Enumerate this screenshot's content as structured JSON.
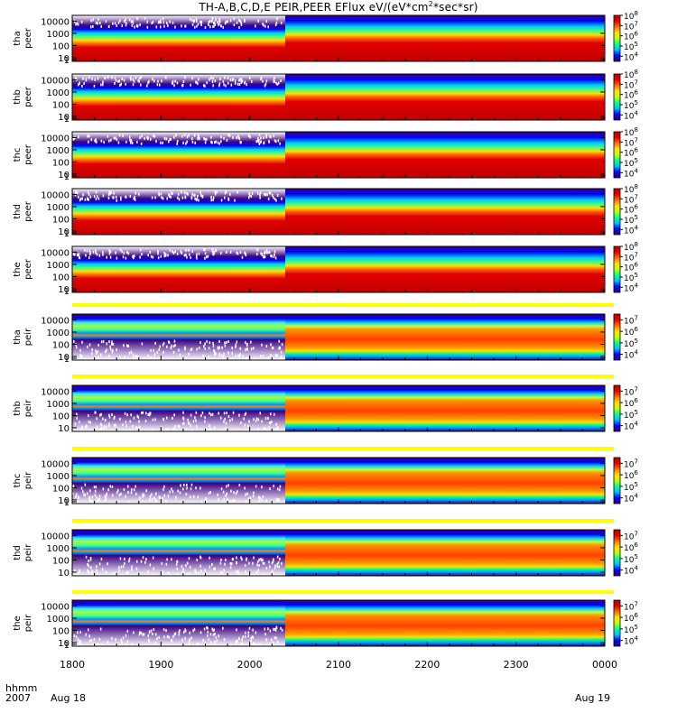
{
  "title_main": "TH-A,B,C,D,E  PEIR,PEER  EFlux  eV/(eV*cm",
  "title_sup": "2",
  "title_tail": "*sec*sr)",
  "chart_data": {
    "type": "heatmap",
    "x_axis": {
      "units_label": "hhmm",
      "year_label": "2007",
      "tick_labels": [
        "1800",
        "1900",
        "2000",
        "2100",
        "2200",
        "2300",
        "0000"
      ],
      "date_labels": [
        "Aug 18",
        "Aug 19"
      ],
      "range_hours": [
        18.0,
        24.0
      ]
    },
    "panels": [
      {
        "probe": "tha",
        "instrument": "peer",
        "ylim_eV": [
          5,
          30000
        ],
        "yticks": [
          "10000",
          "1000",
          "100",
          "10",
          "1"
        ],
        "cbar_range_exp": [
          3.5,
          8
        ],
        "cbar_ticks_exp": [
          4,
          5,
          6,
          7,
          8
        ],
        "transition_hhmm": "2024",
        "separator": false
      },
      {
        "probe": "thb",
        "instrument": "peer",
        "ylim_eV": [
          5,
          30000
        ],
        "yticks": [
          "10000",
          "1000",
          "100",
          "10",
          "1"
        ],
        "cbar_range_exp": [
          3.5,
          8
        ],
        "cbar_ticks_exp": [
          4,
          5,
          6,
          7,
          8
        ],
        "transition_hhmm": "2024",
        "separator": false
      },
      {
        "probe": "thc",
        "instrument": "peer",
        "ylim_eV": [
          5,
          30000
        ],
        "yticks": [
          "10000",
          "1000",
          "100",
          "10",
          "1"
        ],
        "cbar_range_exp": [
          3.5,
          8
        ],
        "cbar_ticks_exp": [
          4,
          5,
          6,
          7,
          8
        ],
        "transition_hhmm": "2024",
        "separator": false
      },
      {
        "probe": "thd",
        "instrument": "peer",
        "ylim_eV": [
          5,
          30000
        ],
        "yticks": [
          "10000",
          "1000",
          "100",
          "10",
          "1"
        ],
        "cbar_range_exp": [
          3.5,
          8
        ],
        "cbar_ticks_exp": [
          4,
          5,
          6,
          7,
          8
        ],
        "transition_hhmm": "2024",
        "separator": false
      },
      {
        "probe": "the",
        "instrument": "peer",
        "ylim_eV": [
          5,
          30000
        ],
        "yticks": [
          "10000",
          "1000",
          "100",
          "10",
          "1"
        ],
        "cbar_range_exp": [
          3.5,
          8
        ],
        "cbar_ticks_exp": [
          4,
          5,
          6,
          7,
          8
        ],
        "transition_hhmm": "2024",
        "separator": false
      },
      {
        "probe": "tha",
        "instrument": "peir",
        "ylim_eV": [
          5,
          30000
        ],
        "yticks": [
          "10000",
          "1000",
          "100",
          "10",
          "1"
        ],
        "cbar_range_exp": [
          3.5,
          7.5
        ],
        "cbar_ticks_exp": [
          4,
          5,
          6,
          7
        ],
        "transition_hhmm": "2024",
        "separator": true
      },
      {
        "probe": "thb",
        "instrument": "peir",
        "ylim_eV": [
          5,
          30000
        ],
        "yticks": [
          "10000",
          "1000",
          "100",
          "10"
        ],
        "cbar_range_exp": [
          3.5,
          7.5
        ],
        "cbar_ticks_exp": [
          4,
          5,
          6,
          7
        ],
        "transition_hhmm": "2024",
        "separator": true
      },
      {
        "probe": "thc",
        "instrument": "peir",
        "ylim_eV": [
          5,
          30000
        ],
        "yticks": [
          "10000",
          "1000",
          "100",
          "10",
          "1"
        ],
        "cbar_range_exp": [
          3.5,
          7.5
        ],
        "cbar_ticks_exp": [
          4,
          5,
          6,
          7
        ],
        "transition_hhmm": "2024",
        "separator": true
      },
      {
        "probe": "thd",
        "instrument": "peir",
        "ylim_eV": [
          5,
          30000
        ],
        "yticks": [
          "10000",
          "1000",
          "100",
          "10"
        ],
        "cbar_range_exp": [
          3.5,
          7.5
        ],
        "cbar_ticks_exp": [
          4,
          5,
          6,
          7
        ],
        "transition_hhmm": "2024",
        "separator": true
      },
      {
        "probe": "the",
        "instrument": "peir",
        "ylim_eV": [
          5,
          30000
        ],
        "yticks": [
          "10000",
          "1000",
          "100",
          "10",
          "1"
        ],
        "cbar_range_exp": [
          3.5,
          7.5
        ],
        "cbar_ticks_exp": [
          4,
          5,
          6,
          7
        ],
        "transition_hhmm": "2024",
        "separator": true
      }
    ]
  },
  "colors": {
    "separator": "#ffff00",
    "background": "#ffffff",
    "colorscale": [
      "#3b0080",
      "#0000ff",
      "#00c0ff",
      "#00ff90",
      "#c0ff00",
      "#ffe000",
      "#ff7000",
      "#e00000",
      "#c00000"
    ]
  }
}
